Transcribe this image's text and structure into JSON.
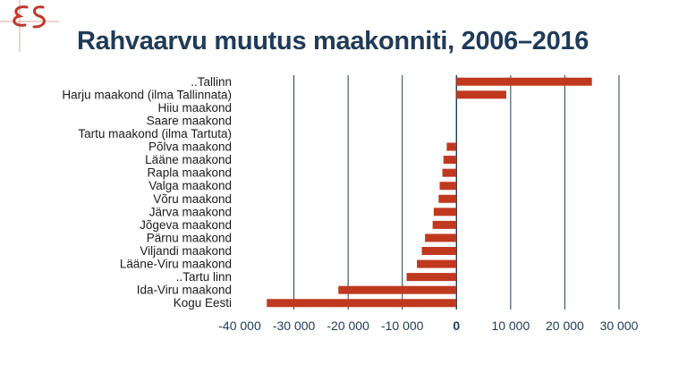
{
  "title": "Rahvaarvu muutus maakonniti, 2006–2016",
  "logo": {
    "text": "ES",
    "color": "#c0392b"
  },
  "colors": {
    "bar": "#c0391f",
    "grid": "#1f3b57",
    "axis_text": "#1f3b57",
    "title": "#1f3b57"
  },
  "chart_data": {
    "type": "bar",
    "orientation": "horizontal",
    "categories": [
      "..Tallinn",
      "Harju maakond (ilma Tallinnata)",
      "Hiiu maakond",
      "Saare maakond",
      "Tartu maakond (ilma Tartuta)",
      "Põlva maakond",
      "Lääne maakond",
      "Rapla maakond",
      "Valga maakond",
      "Võru maakond",
      "Järva maakond",
      "Jõgeva maakond",
      "Pärnu maakond",
      "Viljandi maakond",
      "Lääne-Viru maakond",
      "..Tartu linn",
      "Ida-Viru maakond",
      "Kogu Eesti"
    ],
    "values": [
      25000,
      9200,
      0,
      0,
      0,
      -1800,
      -2400,
      -2600,
      -3100,
      -3300,
      -4200,
      -4400,
      -5800,
      -6400,
      -7300,
      -9200,
      -21800,
      -35000
    ],
    "xlim": [
      -40000,
      30000
    ],
    "ticks": [
      -40000,
      -30000,
      -20000,
      -10000,
      0,
      10000,
      20000,
      30000
    ],
    "tick_labels": [
      "-40 000",
      "-30 000",
      "-20 000",
      "-10 000",
      "0",
      "10 000",
      "20 000",
      "30 000"
    ],
    "grid": true,
    "legend": "none"
  }
}
